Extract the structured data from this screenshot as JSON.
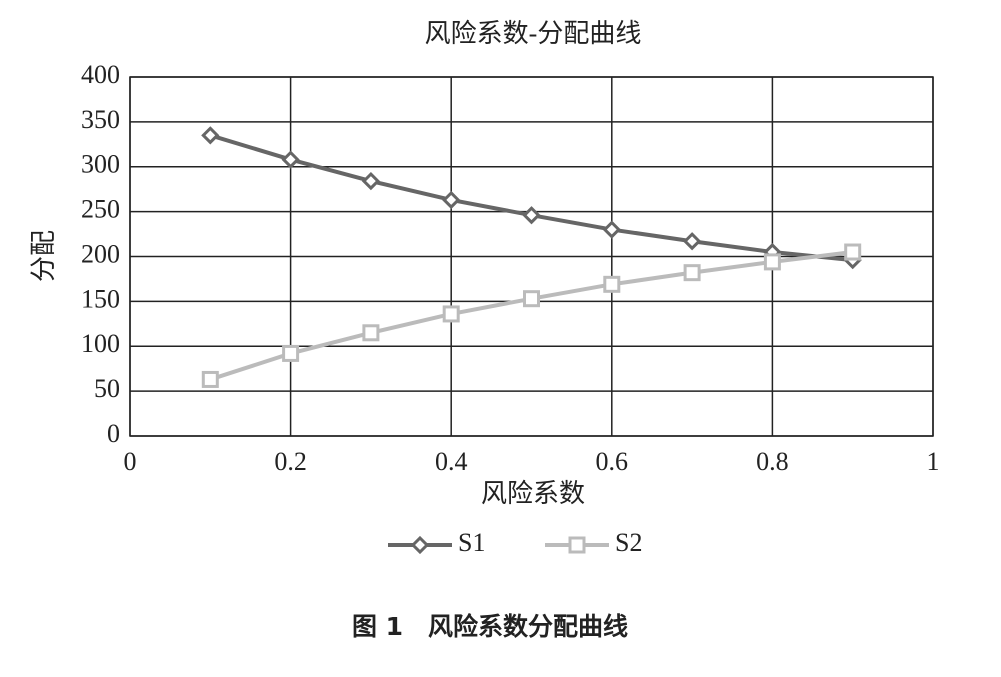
{
  "chart_data": {
    "type": "line",
    "title": "风险系数-分配曲线",
    "x_label": "风险系数",
    "y_label": "分配",
    "caption": "图 1　风险系数分配曲线",
    "x": [
      0.1,
      0.2,
      0.3,
      0.4,
      0.5,
      0.6,
      0.7,
      0.8,
      0.9
    ],
    "series": [
      {
        "name": "S1",
        "color": "#666666",
        "marker": "diamond",
        "values": [
          335,
          308,
          284,
          263,
          246,
          230,
          217,
          205,
          196
        ]
      },
      {
        "name": "S2",
        "color": "#bbbbbb",
        "marker": "square",
        "values": [
          63,
          92,
          115,
          136,
          153,
          169,
          182,
          194,
          205
        ]
      }
    ],
    "xlim": [
      0,
      1
    ],
    "xticks": [
      0,
      0.2,
      0.4,
      0.6,
      0.8,
      1
    ],
    "ylim": [
      0,
      400
    ],
    "yticks": [
      0,
      50,
      100,
      150,
      200,
      250,
      300,
      350,
      400
    ],
    "grid": true,
    "legend": "bottom"
  }
}
